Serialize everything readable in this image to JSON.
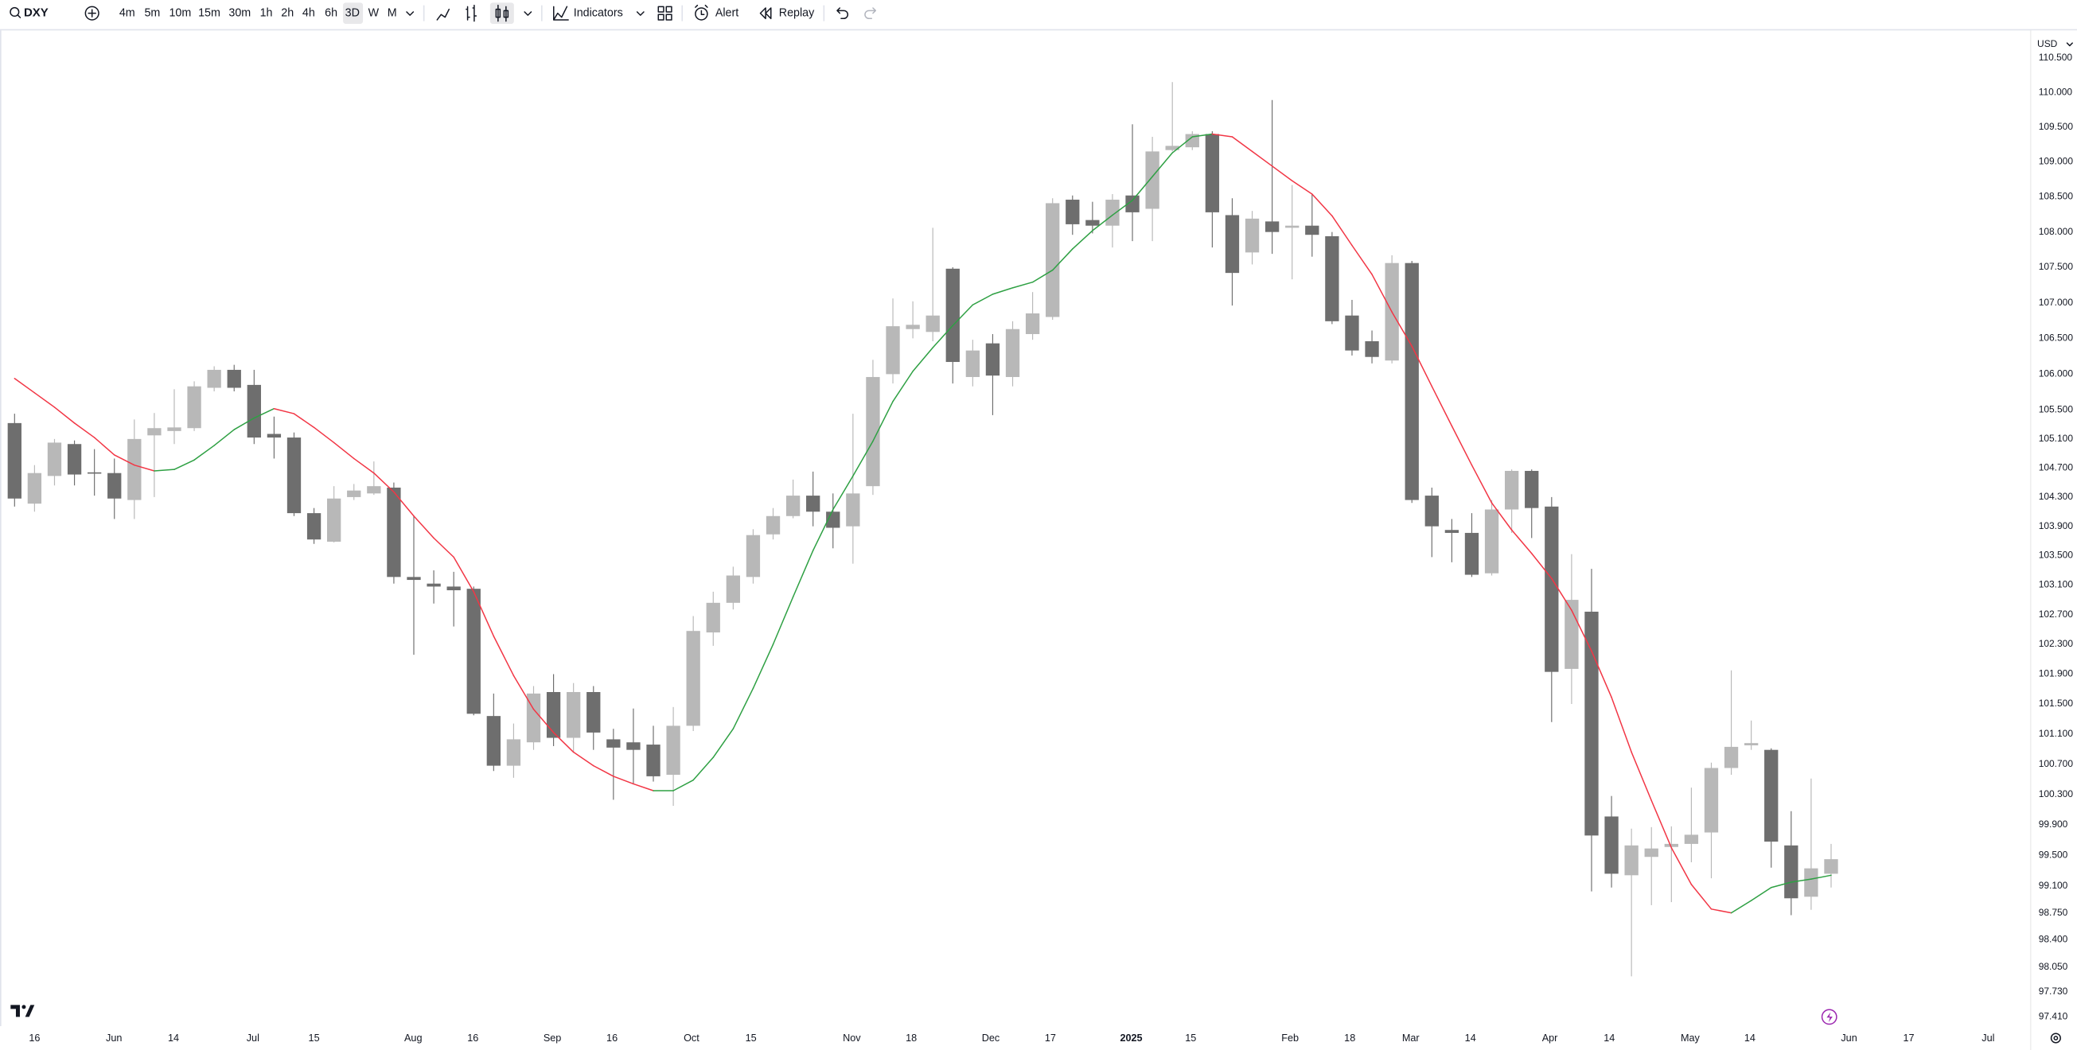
{
  "toolbar": {
    "symbol": "DXY",
    "intervals": [
      "4m",
      "5m",
      "10m",
      "15m",
      "30m",
      "1h",
      "2h",
      "4h",
      "6h",
      "3D",
      "W",
      "M"
    ],
    "indicators": "Indicators",
    "alert": "Alert",
    "replay": "Replay"
  },
  "chart_data": {
    "type": "candlestick",
    "currency": "USD",
    "log_scale": true,
    "up_color": "#b8b8b8",
    "down_color": "#6e6e6e",
    "ma_up_color": "#2ea043",
    "ma_down_color": "#f23645",
    "xlim": [
      -0.73,
      100.93
    ],
    "ylim": [
      97.29,
      110.92
    ],
    "yticks": [
      {
        "value": 97.41,
        "label": "97.410"
      },
      {
        "value": 97.73,
        "label": "97.730"
      },
      {
        "value": 98.05,
        "label": "98.050"
      },
      {
        "value": 98.4,
        "label": "98.400"
      },
      {
        "value": 98.75,
        "label": "98.750"
      },
      {
        "value": 99.1,
        "label": "99.100"
      },
      {
        "value": 99.5,
        "label": "99.500"
      },
      {
        "value": 99.9,
        "label": "99.900"
      },
      {
        "value": 100.3,
        "label": "100.300"
      },
      {
        "value": 100.7,
        "label": "100.700"
      },
      {
        "value": 101.1,
        "label": "101.100"
      },
      {
        "value": 101.5,
        "label": "101.500"
      },
      {
        "value": 101.9,
        "label": "101.900"
      },
      {
        "value": 102.3,
        "label": "102.300"
      },
      {
        "value": 102.7,
        "label": "102.700"
      },
      {
        "value": 103.1,
        "label": "103.100"
      },
      {
        "value": 103.5,
        "label": "103.500"
      },
      {
        "value": 103.9,
        "label": "103.900"
      },
      {
        "value": 104.3,
        "label": "104.300"
      },
      {
        "value": 104.7,
        "label": "104.700"
      },
      {
        "value": 105.1,
        "label": "105.100"
      },
      {
        "value": 105.5,
        "label": "105.500"
      },
      {
        "value": 106,
        "label": "106.000"
      },
      {
        "value": 106.5,
        "label": "106.500"
      },
      {
        "value": 107,
        "label": "107.000"
      },
      {
        "value": 107.5,
        "label": "107.500"
      },
      {
        "value": 108,
        "label": "108.000"
      },
      {
        "value": 108.5,
        "label": "108.500"
      },
      {
        "value": 109,
        "label": "109.000"
      },
      {
        "value": 109.5,
        "label": "109.500"
      },
      {
        "value": 110,
        "label": "110.000"
      },
      {
        "value": 110.5,
        "label": "110.500"
      }
    ],
    "xticks": [
      {
        "value": 1.0,
        "label": "16"
      },
      {
        "value": 4.98,
        "label": "Jun"
      },
      {
        "value": 7.96,
        "label": "14"
      },
      {
        "value": 11.94,
        "label": "Jul"
      },
      {
        "value": 15.0,
        "label": "15"
      },
      {
        "value": 19.97,
        "label": "Aug"
      },
      {
        "value": 22.96,
        "label": "16"
      },
      {
        "value": 26.94,
        "label": "Sep"
      },
      {
        "value": 29.93,
        "label": "16"
      },
      {
        "value": 33.91,
        "label": "Oct"
      },
      {
        "value": 36.89,
        "label": "15"
      },
      {
        "value": 41.94,
        "label": "Nov"
      },
      {
        "value": 44.92,
        "label": "18"
      },
      {
        "value": 48.9,
        "label": "Dec"
      },
      {
        "value": 51.89,
        "label": "17"
      },
      {
        "value": 55.94,
        "label": "2025"
      },
      {
        "value": 58.92,
        "label": "15"
      },
      {
        "value": 63.9,
        "label": "Feb"
      },
      {
        "value": 66.89,
        "label": "18"
      },
      {
        "value": 69.94,
        "label": "Mar"
      },
      {
        "value": 72.93,
        "label": "14"
      },
      {
        "value": 76.91,
        "label": "Apr"
      },
      {
        "value": 79.89,
        "label": "14"
      },
      {
        "value": 83.94,
        "label": "May"
      },
      {
        "value": 86.93,
        "label": "14"
      },
      {
        "value": 91.9,
        "label": "Jun"
      },
      {
        "value": 94.89,
        "label": "17"
      },
      {
        "value": 98.87,
        "label": "Jul"
      }
    ],
    "open": [
      105.32,
      104.21,
      104.59,
      105.03,
      104.64,
      104.63,
      104.26,
      105.15,
      105.21,
      105.25,
      105.81,
      106.06,
      105.85,
      105.17,
      105.12,
      104.08,
      103.69,
      104.3,
      104.35,
      104.43,
      103.21,
      103.12,
      103.08,
      103.05,
      101.34,
      100.68,
      100.99,
      101.66,
      101.05,
      101.66,
      101.03,
      100.99,
      100.96,
      100.56,
      101.21,
      102.46,
      102.86,
      103.21,
      103.79,
      104.04,
      104.32,
      104.1,
      103.9,
      104.45,
      106.0,
      106.63,
      106.59,
      107.48,
      105.96,
      106.43,
      105.96,
      106.56,
      106.8,
      108.46,
      108.17,
      108.09,
      108.52,
      108.33,
      109.17,
      109.21,
      109.4,
      108.24,
      107.71,
      108.15,
      108.06,
      108.09,
      107.94,
      106.82,
      106.46,
      106.19,
      107.56,
      104.32,
      103.85,
      103.81,
      103.26,
      104.13,
      104.66,
      104.17,
      101.97,
      102.74,
      100.01,
      99.24,
      99.48,
      99.61,
      99.65,
      99.8,
      100.65,
      100.95,
      100.89,
      99.63,
      98.96,
      99.26
    ],
    "high": [
      105.45,
      104.74,
      105.1,
      105.08,
      104.96,
      104.83,
      105.37,
      105.46,
      105.79,
      105.9,
      106.11,
      106.13,
      106.06,
      105.41,
      105.19,
      104.15,
      104.45,
      104.48,
      104.79,
      104.5,
      104.04,
      103.3,
      103.28,
      103.08,
      101.64,
      101.24,
      101.74,
      101.9,
      101.78,
      101.74,
      101.17,
      101.44,
      101.21,
      101.46,
      102.68,
      103.01,
      103.35,
      103.86,
      104.15,
      104.54,
      104.65,
      104.35,
      105.45,
      106.2,
      107.06,
      107.02,
      108.06,
      107.5,
      106.48,
      106.56,
      106.74,
      107.15,
      108.48,
      108.52,
      108.43,
      108.54,
      109.54,
      109.36,
      110.15,
      109.44,
      109.44,
      108.48,
      108.3,
      109.89,
      108.67,
      108.54,
      108.0,
      107.04,
      106.61,
      107.67,
      107.59,
      104.43,
      104.0,
      104.08,
      104.26,
      104.68,
      104.68,
      104.3,
      103.52,
      103.32,
      100.28,
      99.85,
      99.87,
      99.88,
      100.39,
      100.72,
      101.95,
      101.28,
      100.91,
      100.08,
      100.51,
      99.65
    ],
    "low": [
      104.17,
      104.1,
      104.46,
      104.46,
      104.32,
      104.0,
      104.0,
      104.3,
      105.03,
      105.21,
      105.76,
      105.76,
      105.03,
      104.83,
      104.04,
      103.66,
      103.68,
      104.26,
      104.33,
      103.12,
      102.16,
      102.85,
      102.54,
      101.35,
      100.61,
      100.52,
      100.89,
      100.94,
      100.86,
      100.89,
      100.23,
      100.44,
      100.47,
      100.15,
      101.14,
      102.28,
      102.77,
      103.12,
      103.72,
      104.01,
      103.9,
      103.6,
      103.39,
      104.33,
      105.87,
      106.5,
      106.46,
      105.87,
      105.83,
      105.43,
      105.83,
      106.48,
      106.76,
      107.96,
      107.98,
      107.78,
      107.87,
      107.87,
      109.15,
      109.17,
      107.78,
      106.96,
      107.54,
      107.69,
      107.33,
      107.65,
      106.7,
      106.26,
      106.15,
      106.15,
      104.22,
      103.48,
      103.41,
      103.21,
      103.23,
      103.81,
      103.74,
      101.26,
      101.5,
      99.03,
      99.08,
      97.93,
      98.85,
      98.89,
      99.41,
      99.2,
      100.56,
      100.89,
      99.34,
      98.72,
      98.79,
      99.08
    ],
    "close": [
      104.28,
      104.63,
      105.05,
      104.61,
      104.63,
      104.28,
      105.1,
      105.25,
      105.26,
      105.83,
      106.06,
      105.81,
      105.12,
      105.12,
      104.08,
      103.72,
      104.28,
      104.39,
      104.45,
      103.21,
      103.17,
      103.08,
      103.03,
      101.37,
      100.68,
      101.03,
      101.64,
      101.05,
      101.66,
      101.12,
      100.92,
      100.89,
      100.54,
      101.21,
      102.48,
      102.86,
      103.23,
      103.78,
      104.04,
      104.32,
      104.1,
      103.88,
      104.35,
      105.96,
      106.67,
      106.69,
      106.82,
      106.17,
      106.33,
      105.98,
      106.63,
      106.85,
      108.41,
      108.11,
      108.09,
      108.46,
      108.28,
      109.15,
      109.23,
      109.4,
      108.28,
      107.42,
      108.19,
      108.0,
      108.09,
      107.96,
      106.74,
      106.33,
      106.24,
      107.56,
      104.26,
      103.9,
      103.81,
      103.24,
      104.13,
      104.66,
      104.15,
      101.93,
      102.9,
      99.76,
      99.26,
      99.63,
      99.59,
      99.65,
      99.77,
      100.65,
      100.93,
      100.98,
      99.68,
      98.94,
      99.33,
      99.45
    ],
    "ma": [
      105.94,
      105.74,
      105.54,
      105.32,
      105.12,
      104.88,
      104.74,
      104.66,
      104.68,
      104.81,
      105.01,
      105.23,
      105.39,
      105.52,
      105.45,
      105.26,
      105.05,
      104.83,
      104.63,
      104.37,
      104.04,
      103.74,
      103.48,
      103.01,
      102.41,
      101.88,
      101.43,
      101.12,
      100.86,
      100.68,
      100.54,
      100.44,
      100.35,
      100.35,
      100.49,
      100.79,
      101.17,
      101.71,
      102.3,
      102.94,
      103.57,
      104.13,
      104.59,
      105.07,
      105.62,
      106.04,
      106.37,
      106.68,
      106.97,
      107.12,
      107.21,
      107.29,
      107.46,
      107.76,
      108.02,
      108.24,
      108.45,
      108.79,
      109.13,
      109.36,
      109.4,
      109.36,
      109.15,
      108.94,
      108.73,
      108.54,
      108.23,
      107.81,
      107.4,
      106.87,
      106.39,
      105.83,
      105.28,
      104.74,
      104.22,
      103.85,
      103.53,
      103.19,
      102.76,
      102.21,
      101.59,
      100.86,
      100.22,
      99.6,
      99.12,
      98.8,
      98.75,
      98.91,
      99.08,
      99.15,
      99.19,
      99.24
    ]
  }
}
